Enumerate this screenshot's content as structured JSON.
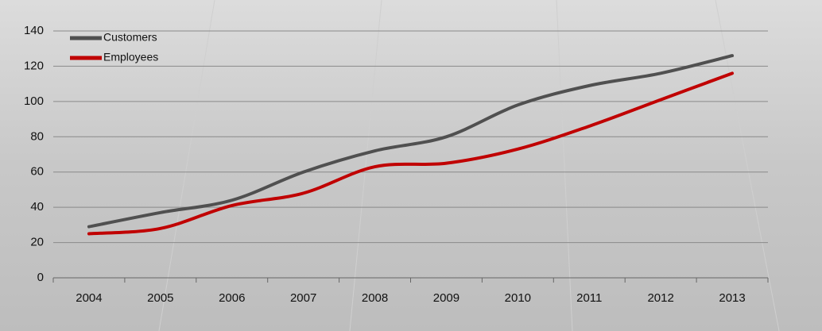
{
  "chart_data": {
    "type": "line",
    "categories": [
      "2004",
      "2005",
      "2006",
      "2007",
      "2008",
      "2009",
      "2010",
      "2011",
      "2012",
      "2013"
    ],
    "series": [
      {
        "name": "Customers",
        "color": "#505050",
        "values": [
          29,
          37,
          44,
          60,
          72,
          80,
          98,
          109,
          116,
          126
        ]
      },
      {
        "name": "Employees",
        "color": "#c00000",
        "values": [
          25,
          28,
          41,
          48,
          63,
          65,
          73,
          86,
          101,
          116
        ]
      }
    ],
    "ylim": [
      0,
      140
    ],
    "yticks": [
      0,
      20,
      40,
      60,
      80,
      100,
      120,
      140
    ],
    "grid": true,
    "legend": "top-left"
  }
}
